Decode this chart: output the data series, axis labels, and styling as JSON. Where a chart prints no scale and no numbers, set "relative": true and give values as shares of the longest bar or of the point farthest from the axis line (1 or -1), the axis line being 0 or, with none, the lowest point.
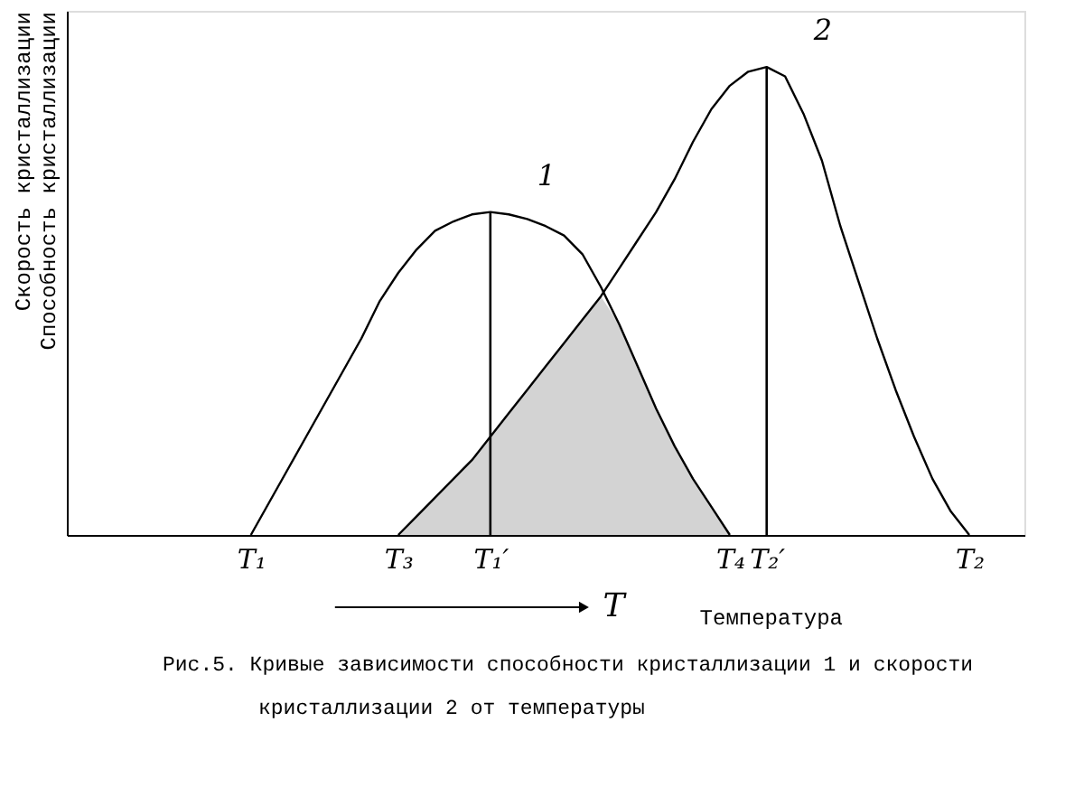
{
  "chart_data": {
    "type": "line",
    "relative": true,
    "xlabel": "Температура",
    "ylabel": "Скорость кристаллизации\nСпособность кристаллизации",
    "annotations": [
      "T",
      "Рис.5. Кривые зависимости способности кристаллизации 1 и скорости",
      "кристаллизации 2 от температуры"
    ],
    "categories": [
      null,
      null,
      null,
      null,
      null,
      null,
      null,
      null,
      null,
      "T₁",
      null,
      null,
      null,
      null,
      null,
      null,
      null,
      "T₃",
      null,
      null,
      null,
      null,
      "T₁′",
      null,
      null,
      null,
      null,
      null,
      null,
      null,
      null,
      null,
      null,
      null,
      null,
      "T₄",
      null,
      "T₂′",
      null,
      null,
      null,
      null,
      null,
      null,
      null,
      null,
      null,
      null,
      "T₂",
      null,
      null
    ],
    "tick_labels": "x",
    "grid": false,
    "legend": false,
    "marker": "none",
    "line_style": "solid",
    "series": [
      {
        "type": "area",
        "color": "#c8c8c8",
        "values": [
          null,
          null,
          null,
          null,
          null,
          null,
          null,
          null,
          null,
          null,
          null,
          null,
          null,
          null,
          null,
          null,
          null,
          0,
          0.04,
          0.08,
          0.12,
          0.16,
          0.21,
          0.26,
          0.31,
          0.36,
          0.41,
          0.46,
          0.51,
          0.45,
          0.36,
          0.27,
          0.19,
          0.12,
          0.06,
          0,
          null,
          null,
          null,
          null,
          null,
          null,
          null,
          null,
          null,
          null,
          null,
          null,
          null,
          null,
          null
        ]
      },
      {
        "name": "1",
        "color": "#000000",
        "values": [
          null,
          null,
          null,
          null,
          null,
          null,
          null,
          null,
          null,
          0,
          0.07,
          0.14,
          0.21,
          0.28,
          0.35,
          0.42,
          0.5,
          0.56,
          0.61,
          0.65,
          0.67,
          0.685,
          0.69,
          0.685,
          0.675,
          0.66,
          0.64,
          0.6,
          0.53,
          0.45,
          0.36,
          0.27,
          0.19,
          0.12,
          0.06,
          0,
          null,
          null,
          null,
          null,
          null,
          null,
          null,
          null,
          null,
          null,
          null,
          null,
          null,
          null,
          null
        ]
      },
      {
        "name": "2",
        "color": "#000000",
        "values": [
          null,
          null,
          null,
          null,
          null,
          null,
          null,
          null,
          null,
          null,
          null,
          null,
          null,
          null,
          null,
          null,
          null,
          0,
          0.04,
          0.08,
          0.12,
          0.16,
          0.21,
          0.26,
          0.31,
          0.36,
          0.41,
          0.46,
          0.51,
          0.57,
          0.63,
          0.69,
          0.76,
          0.84,
          0.91,
          0.96,
          0.99,
          1,
          0.98,
          0.9,
          0.8,
          0.66,
          0.54,
          0.42,
          0.31,
          0.21,
          0.12,
          0.05,
          0,
          null,
          null
        ]
      },
      {
        "type": "bar",
        "color": "#000000",
        "values": [
          null,
          null,
          null,
          null,
          null,
          null,
          null,
          null,
          null,
          null,
          null,
          null,
          null,
          null,
          null,
          null,
          null,
          null,
          null,
          null,
          null,
          null,
          0.69,
          null,
          null,
          null,
          null,
          null,
          null,
          null,
          null,
          null,
          null,
          null,
          null,
          null,
          null,
          1,
          null,
          null,
          null,
          null,
          null,
          null,
          null,
          null,
          null,
          null,
          null,
          null,
          null
        ]
      }
    ]
  }
}
